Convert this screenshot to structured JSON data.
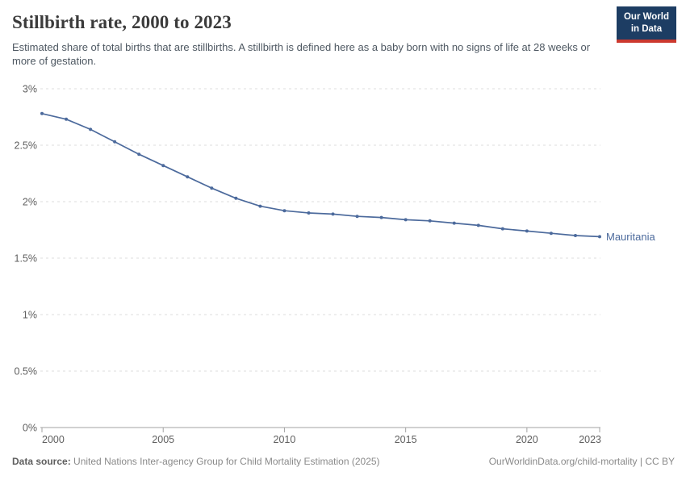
{
  "header": {
    "title": "Stillbirth rate, 2000 to 2023",
    "subtitle": "Estimated share of total births that are stillbirths. A stillbirth is defined here as a baby born with no signs of life at 28 weeks or more of gestation."
  },
  "logo": {
    "line1": "Our World",
    "line2": "in Data",
    "bg_color": "#1d3d63",
    "accent_color": "#cc392f"
  },
  "chart_data": {
    "type": "line",
    "title": "Stillbirth rate, 2000 to 2023",
    "x": [
      2000,
      2001,
      2002,
      2003,
      2004,
      2005,
      2006,
      2007,
      2008,
      2009,
      2010,
      2011,
      2012,
      2013,
      2014,
      2015,
      2016,
      2017,
      2018,
      2019,
      2020,
      2021,
      2022,
      2023
    ],
    "series": [
      {
        "name": "Mauritania",
        "color": "#4c6a9c",
        "values": [
          2.78,
          2.73,
          2.64,
          2.53,
          2.42,
          2.32,
          2.22,
          2.12,
          2.03,
          1.96,
          1.92,
          1.9,
          1.89,
          1.87,
          1.86,
          1.84,
          1.83,
          1.81,
          1.79,
          1.76,
          1.74,
          1.72,
          1.7,
          1.69
        ]
      }
    ],
    "unit": "%",
    "xlabel": "",
    "ylabel": "",
    "ylim": [
      0,
      3
    ],
    "yticks": [
      0,
      0.5,
      1,
      1.5,
      2,
      2.5,
      3
    ],
    "ytick_labels": [
      "0%",
      "0.5%",
      "1%",
      "1.5%",
      "2%",
      "2.5%",
      "3%"
    ],
    "xticks": [
      2000,
      2005,
      2010,
      2015,
      2020,
      2023
    ],
    "grid": "horizontal-dashed",
    "legend_position": "end-of-line-label",
    "appearance": {
      "grid_color": "#dcdcdc",
      "axis_color": "#a3a3a3",
      "tick_label_color": "#5f5f5f"
    }
  },
  "footer": {
    "source_label": "Data source:",
    "source_text": "United Nations Inter-agency Group for Child Mortality Estimation (2025)",
    "link_text": "OurWorldinData.org/child-mortality | CC BY"
  }
}
